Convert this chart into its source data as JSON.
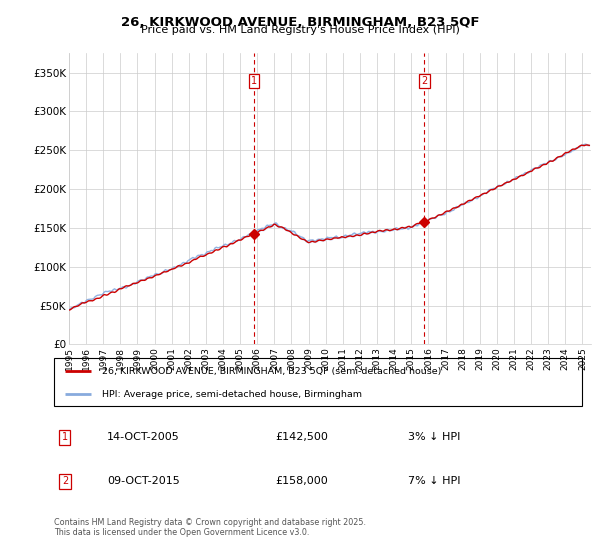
{
  "title": "26, KIRKWOOD AVENUE, BIRMINGHAM, B23 5QF",
  "subtitle": "Price paid vs. HM Land Registry's House Price Index (HPI)",
  "ylabel_ticks": [
    "£0",
    "£50K",
    "£100K",
    "£150K",
    "£200K",
    "£250K",
    "£300K",
    "£350K"
  ],
  "ytick_values": [
    0,
    50000,
    100000,
    150000,
    200000,
    250000,
    300000,
    350000
  ],
  "ylim": [
    0,
    375000
  ],
  "xlim_start": 1995.0,
  "xlim_end": 2025.5,
  "marker1_x": 2005.79,
  "marker1_y": 142500,
  "marker1_label": "1",
  "marker1_date": "14-OCT-2005",
  "marker1_price": "£142,500",
  "marker1_hpi": "3% ↓ HPI",
  "marker2_x": 2015.77,
  "marker2_y": 158000,
  "marker2_label": "2",
  "marker2_date": "09-OCT-2015",
  "marker2_price": "£158,000",
  "marker2_hpi": "7% ↓ HPI",
  "legend_line1": "26, KIRKWOOD AVENUE, BIRMINGHAM, B23 5QF (semi-detached house)",
  "legend_line2": "HPI: Average price, semi-detached house, Birmingham",
  "footer": "Contains HM Land Registry data © Crown copyright and database right 2025.\nThis data is licensed under the Open Government Licence v3.0.",
  "line_color_property": "#cc0000",
  "line_color_hpi": "#88aadd",
  "shaded_color": "#ddeeff",
  "background_color": "#ffffff",
  "grid_color": "#cccccc",
  "vline_color": "#cc0000",
  "marker_box_color": "#cc0000"
}
